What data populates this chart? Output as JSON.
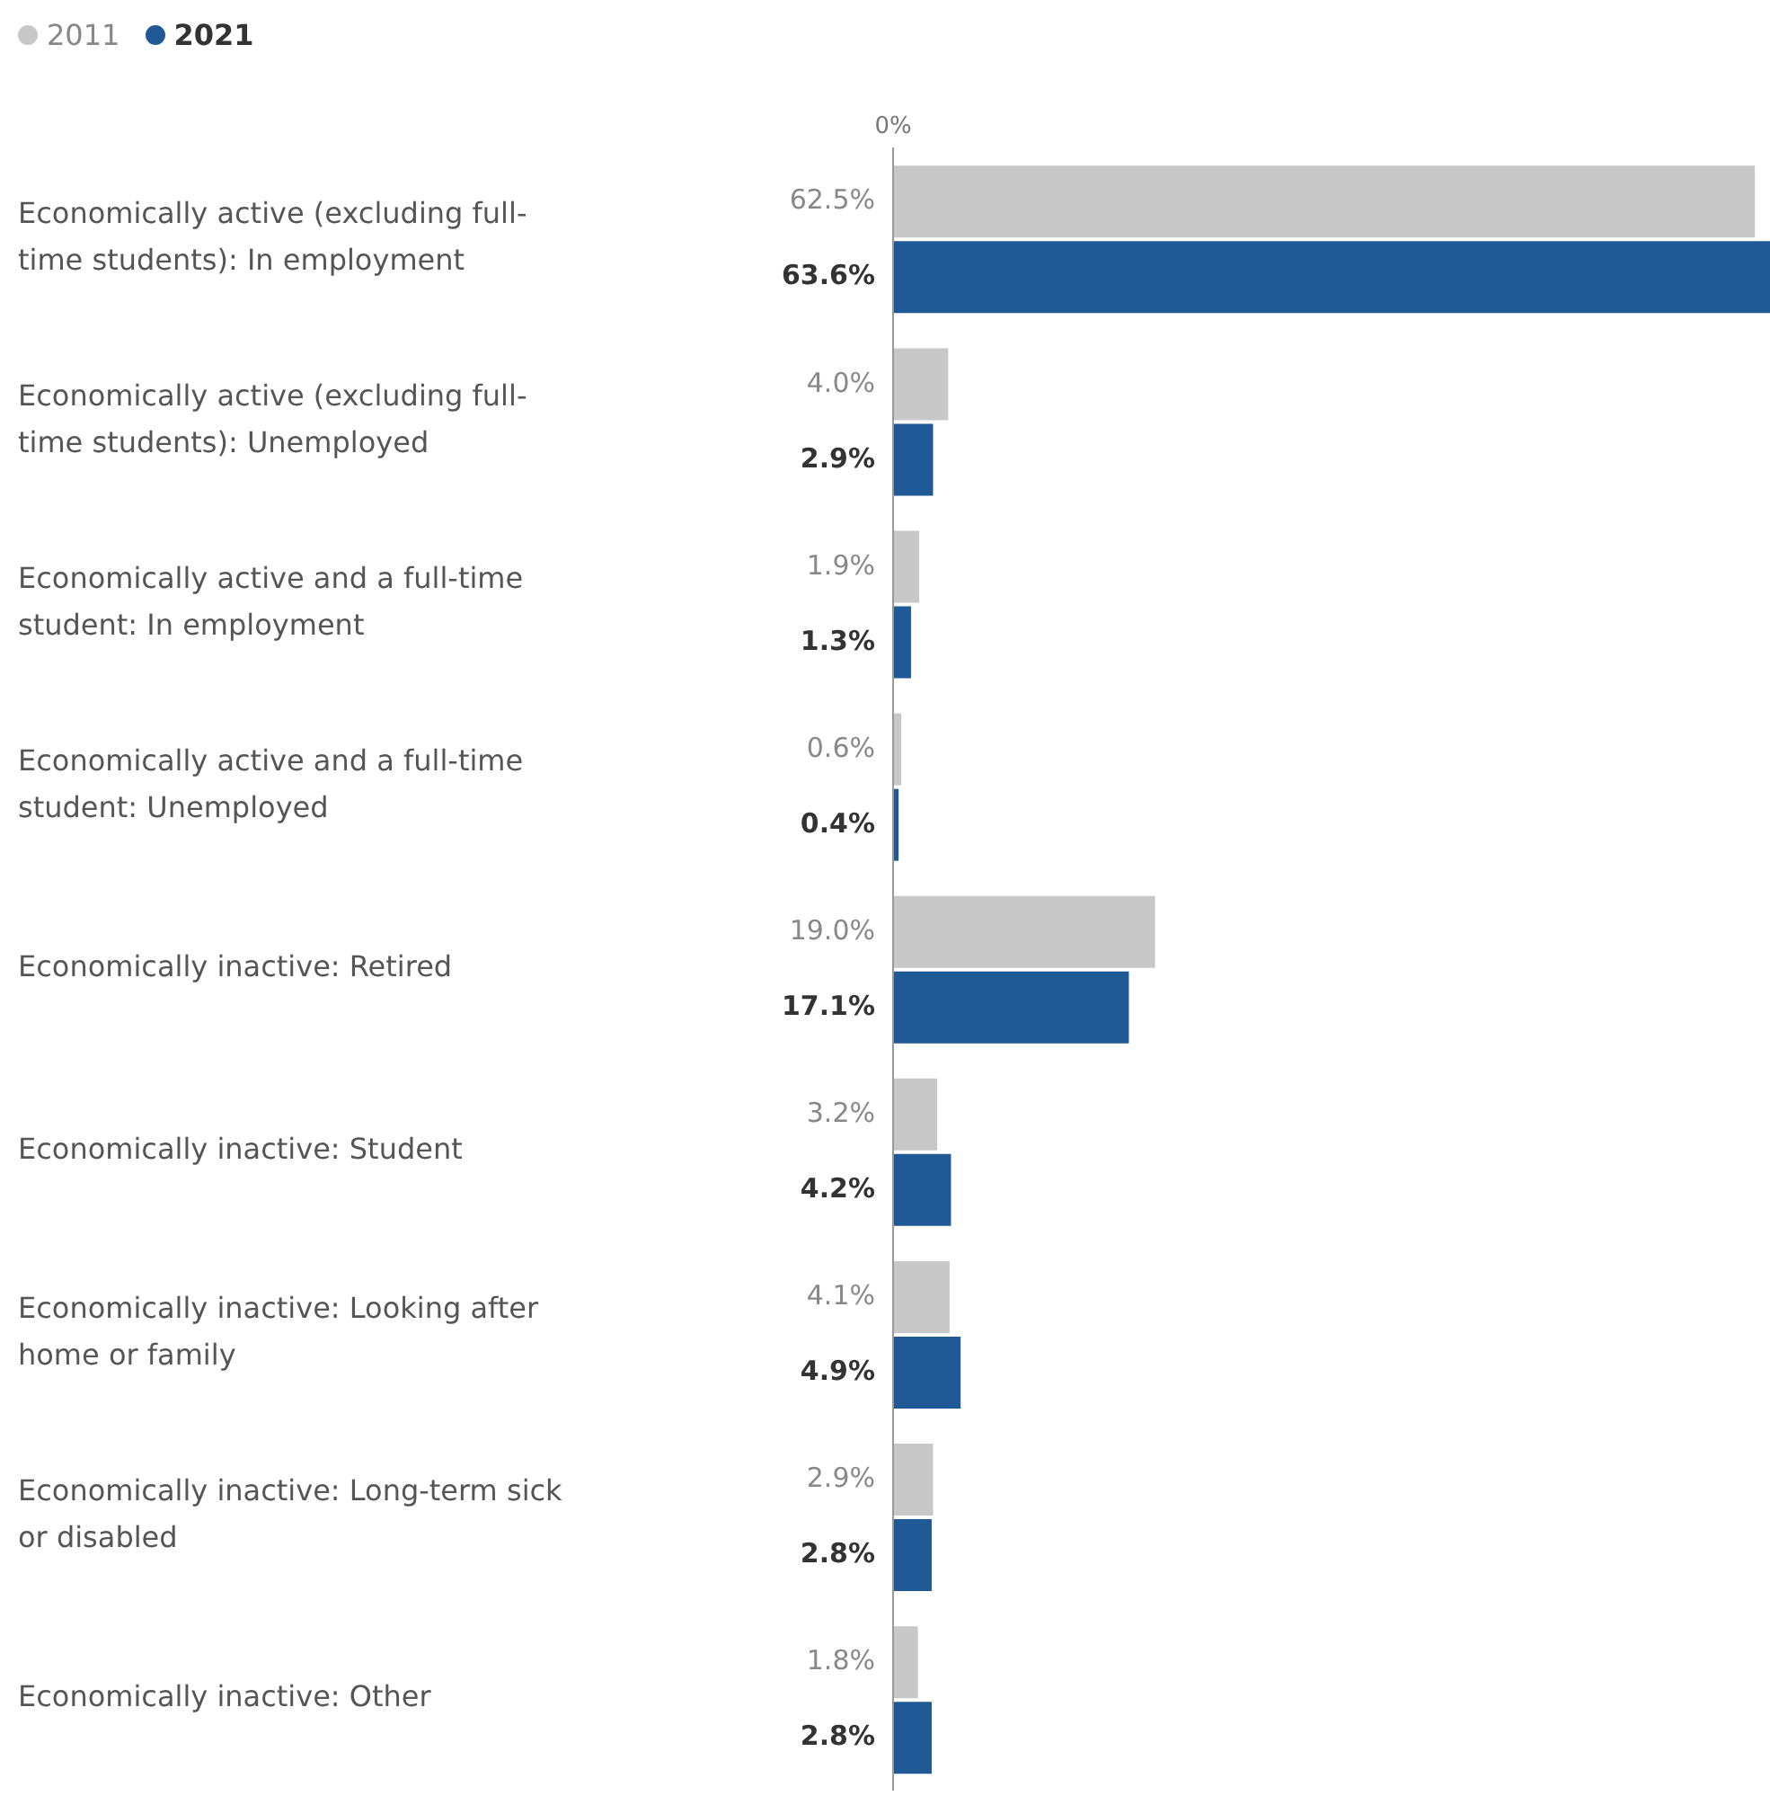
{
  "chart_data": {
    "type": "bar",
    "orientation": "horizontal",
    "categories": [
      "Economically active (excluding full-time students): In employment",
      "Economically active (excluding full-time students): Unemployed",
      "Economically active and a full-time student: In employment",
      "Economically active and a full-time student: Unemployed",
      "Economically inactive: Retired",
      "Economically inactive: Student",
      "Economically inactive: Looking after home or family",
      "Economically inactive: Long-term sick or disabled",
      "Economically inactive: Other"
    ],
    "series": [
      {
        "name": "2011",
        "color": "#c8c8c8",
        "values": [
          62.5,
          4.0,
          1.9,
          0.6,
          19.0,
          3.2,
          4.1,
          2.9,
          1.8
        ],
        "value_labels": [
          "62.5%",
          "4.0%",
          "1.9%",
          "0.6%",
          "19.0%",
          "3.2%",
          "4.1%",
          "2.9%",
          "1.8%"
        ]
      },
      {
        "name": "2021",
        "color": "#1f5a96",
        "values": [
          63.6,
          2.9,
          1.3,
          0.4,
          17.1,
          4.2,
          4.9,
          2.8,
          2.8
        ],
        "value_labels": [
          "63.6%",
          "2.9%",
          "1.3%",
          "0.4%",
          "17.1%",
          "4.2%",
          "4.9%",
          "2.8%",
          "2.8%"
        ]
      }
    ],
    "annotations": [
      "0%"
    ],
    "grid": false,
    "legend": "top left"
  }
}
